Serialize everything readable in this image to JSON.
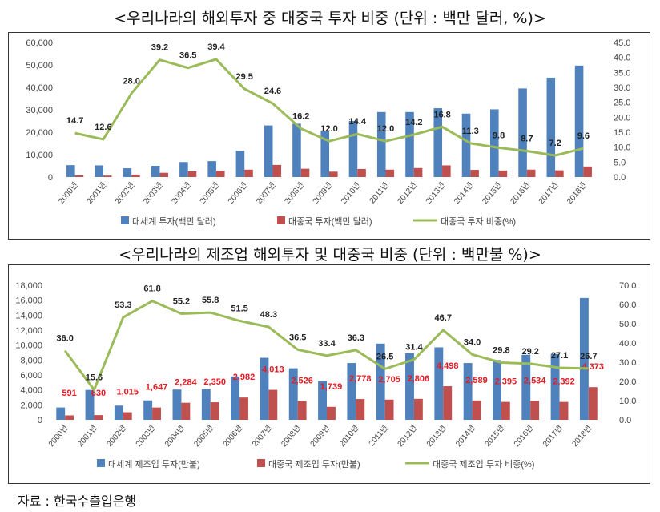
{
  "source": "자료 : 한국수출입은행",
  "chart_data": [
    {
      "type": "bar",
      "title": "<우리나라의 해외투자 중 대중국 투자 비중 (단위 : 백만 달러, %)>",
      "categories": [
        "2000년",
        "2001년",
        "2002년",
        "2003년",
        "2004년",
        "2005년",
        "2006년",
        "2007년",
        "2008년",
        "2009년",
        "2010년",
        "2011년",
        "2012년",
        "2013년",
        "2014년",
        "2015년",
        "2016년",
        "2017년",
        "2018년"
      ],
      "series": [
        {
          "name": "대세계 투자(백만 달러)",
          "kind": "bar",
          "axis": "left",
          "color": "#4f81bd",
          "values": [
            5300,
            5200,
            3900,
            5000,
            6700,
            7100,
            11700,
            23000,
            23800,
            20500,
            25000,
            29000,
            29000,
            30700,
            28300,
            30200,
            39500,
            44300,
            49700
          ]
        },
        {
          "name": "대중국 투자(백만 달러)",
          "kind": "bar",
          "axis": "left",
          "color": "#c0504d",
          "values": [
            780,
            650,
            1100,
            1900,
            2500,
            2800,
            3300,
            5400,
            3700,
            2400,
            3600,
            3300,
            4000,
            5200,
            3200,
            2900,
            3300,
            3000,
            4700
          ]
        },
        {
          "name": "대중국 투자 비중(%)",
          "kind": "line",
          "axis": "right",
          "color": "#9bbb59",
          "values": [
            14.7,
            12.6,
            28.0,
            39.2,
            36.5,
            39.4,
            29.5,
            24.6,
            16.2,
            12.0,
            14.4,
            12.0,
            14.2,
            16.8,
            11.3,
            9.8,
            8.7,
            7.2,
            9.6
          ],
          "labels": [
            "14.7",
            "12.6",
            "28.0",
            "39.2",
            "36.5",
            "39.4",
            "29.5",
            "24.6",
            "16.2",
            "12.0",
            "14.4",
            "12.0",
            "14.2",
            "16.8",
            "11.3",
            "9.8",
            "8.7",
            "7.2",
            "9.6"
          ]
        }
      ],
      "ylim": [
        0,
        60000
      ],
      "yticks": [
        "0",
        "10,000",
        "20,000",
        "30,000",
        "40,000",
        "50,000",
        "60,000"
      ],
      "y2lim": [
        0,
        45
      ],
      "y2ticks": [
        "0.0",
        "5.0",
        "10.0",
        "15.0",
        "20.0",
        "25.0",
        "30.0",
        "35.0",
        "40.0",
        "45.0"
      ],
      "legend": "bottom"
    },
    {
      "type": "bar",
      "title": "<우리나라의 제조업 해외투자 및 대중국 비중 (단위 : 백만불 %)>",
      "categories": [
        "2000년",
        "2001년",
        "2002년",
        "2003년",
        "2004년",
        "2005년",
        "2006년",
        "2007년",
        "2008년",
        "2009년",
        "2010년",
        "2011년",
        "2012년",
        "2013년",
        "2014년",
        "2015년",
        "2016년",
        "2017년",
        "2018년"
      ],
      "series": [
        {
          "name": "대세계 제조업 투자(만불)",
          "kind": "bar",
          "axis": "left",
          "color": "#4f81bd",
          "values": [
            1650,
            4000,
            1900,
            2600,
            4050,
            4100,
            5800,
            8300,
            6900,
            5200,
            7600,
            10200,
            8900,
            9700,
            7600,
            8000,
            8700,
            8800,
            16300
          ]
        },
        {
          "name": "대중국 제조업 투자(만불)",
          "kind": "bar",
          "axis": "left",
          "color": "#c0504d",
          "values": [
            591,
            630,
            1015,
            1647,
            2284,
            2350,
            2982,
            4013,
            2526,
            1739,
            2778,
            2705,
            2806,
            4498,
            2589,
            2395,
            2534,
            2392,
            4373
          ],
          "labels": [
            "591",
            "630",
            "1,015",
            "1,647",
            "2,284",
            "2,350",
            "2,982",
            "4,013",
            "2,526",
            "1,739",
            "2,778",
            "2,705",
            "2,806",
            "4,498",
            "2,589",
            "2,395",
            "2,534",
            "2,392",
            "4,373"
          ],
          "label_color": "#e31b23"
        },
        {
          "name": "대중국 제조업 투자 비중(%)",
          "kind": "line",
          "axis": "right",
          "color": "#9bbb59",
          "values": [
            36.0,
            15.6,
            53.3,
            61.8,
            55.2,
            55.8,
            51.5,
            48.3,
            36.5,
            33.4,
            36.3,
            26.5,
            31.4,
            46.7,
            34.0,
            29.8,
            29.2,
            27.1,
            26.7
          ],
          "labels": [
            "36.0",
            "15.6",
            "53.3",
            "61.8",
            "55.2",
            "55.8",
            "51.5",
            "48.3",
            "36.5",
            "33.4",
            "36.3",
            "26.5",
            "31.4",
            "46.7",
            "34.0",
            "29.8",
            "29.2",
            "27.1",
            "26.7"
          ]
        }
      ],
      "ylim": [
        0,
        18000
      ],
      "yticks": [
        "0",
        "2,000",
        "4,000",
        "6,000",
        "8,000",
        "10,000",
        "12,000",
        "14,000",
        "16,000",
        "18,000"
      ],
      "y2lim": [
        0,
        70
      ],
      "y2ticks": [
        "0.0",
        "10.0",
        "20.0",
        "30.0",
        "40.0",
        "50.0",
        "60.0",
        "70.0"
      ],
      "legend": "bottom"
    }
  ]
}
